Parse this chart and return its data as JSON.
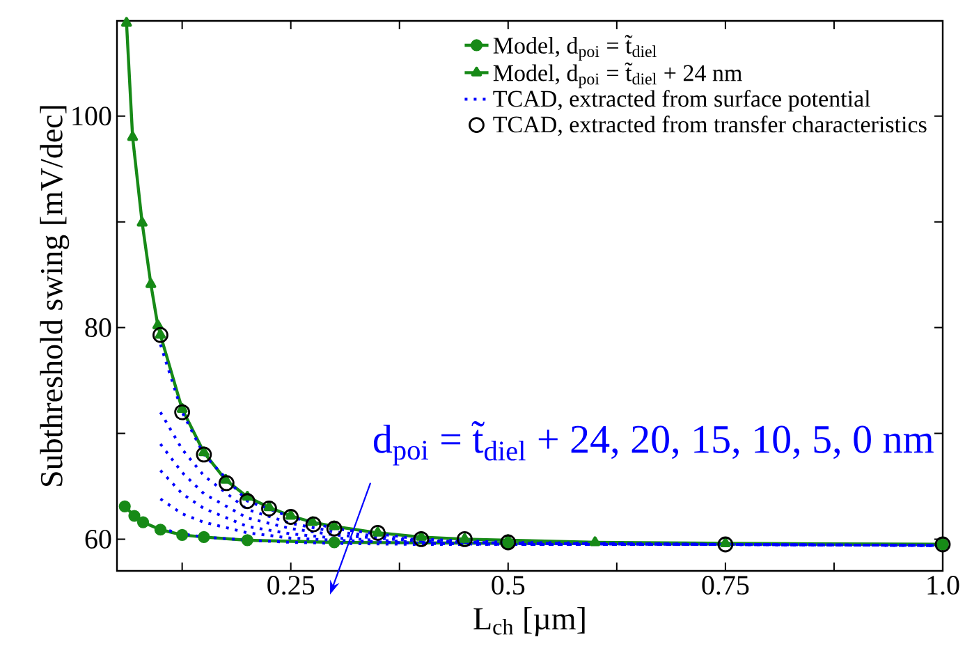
{
  "chart_data": {
    "type": "line",
    "xlabel": "L$_{ch}$ [µm]",
    "ylabel": "Subthreshold swing [mV/dec]",
    "xlim": [
      0.05,
      1.0
    ],
    "ylim": [
      57,
      109
    ],
    "xticks": [
      {
        "value": 0.125,
        "label": null
      },
      0.25,
      {
        "value": 0.375,
        "label": null
      },
      0.5,
      {
        "value": 0.625,
        "label": null
      },
      0.75,
      {
        "value": 0.875,
        "label": null
      },
      {
        "value": 1.0,
        "label": "1.0"
      }
    ],
    "yticks": [
      60,
      {
        "value": 70,
        "label": null
      },
      80,
      {
        "value": 90,
        "label": null
      },
      100
    ],
    "legend": "top right",
    "annotations": [
      "d$_{poi}$ = t̃$_{diel}$ + 24, 20, 15, 10, 5, 0 nm"
    ],
    "series": [
      {
        "name": "Model, d$_{poi}$ = t̃$_{diel}$",
        "marker": "circle",
        "line_style": "solid",
        "color": "#178a17",
        "x": [
          0.059,
          0.07,
          0.08,
          0.1,
          0.125,
          0.15,
          0.2,
          0.3,
          0.5,
          1.0
        ],
        "values": [
          63.1,
          62.2,
          61.6,
          60.9,
          60.4,
          60.2,
          59.9,
          59.7,
          59.6,
          59.5
        ]
      },
      {
        "name": "Model, d$_{poi}$ = t̃$_{diel}$ + 24 nm",
        "marker": "triangle",
        "line_style": "solid",
        "color": "#178a17",
        "x": [
          0.061,
          0.068,
          0.079,
          0.089,
          0.097,
          0.1,
          0.125,
          0.15,
          0.175,
          0.2,
          0.225,
          0.25,
          0.275,
          0.3,
          0.35,
          0.4,
          0.45,
          0.5,
          0.6,
          0.75,
          1.0
        ],
        "values": [
          108.8,
          98.0,
          89.9,
          84.1,
          80.2,
          79.3,
          72.3,
          68.2,
          65.6,
          64.0,
          63.0,
          62.2,
          61.6,
          61.2,
          60.6,
          60.2,
          60.0,
          59.9,
          59.7,
          59.6,
          59.5
        ]
      },
      {
        "name": "TCAD, extracted from surface potential",
        "type": "line",
        "marker": "none",
        "line_style": "dotted",
        "color": "#0000ff",
        "x": [
          0.1,
          0.125,
          0.15,
          0.2,
          0.25,
          0.3,
          0.4,
          0.5,
          0.75,
          1.0
        ],
        "values": [
          78.4,
          72.0,
          68.0,
          63.6,
          62.1,
          61.0,
          60.0,
          59.7,
          59.5,
          59.4
        ]
      },
      {
        "type": "line",
        "marker": "none",
        "line_style": "dotted",
        "color": "#0000ff",
        "x": [
          0.1,
          0.125,
          0.15,
          0.2,
          0.25,
          0.3,
          0.4,
          0.5,
          0.75,
          1.0
        ],
        "values": [
          72.0,
          68.5,
          66.0,
          62.8,
          61.5,
          60.7,
          59.9,
          59.6,
          59.5,
          59.4
        ]
      },
      {
        "type": "line",
        "marker": "none",
        "line_style": "dotted",
        "color": "#0000ff",
        "x": [
          0.1,
          0.125,
          0.15,
          0.2,
          0.25,
          0.3,
          0.4,
          0.5,
          0.75,
          1.0
        ],
        "values": [
          69.0,
          66.3,
          64.3,
          62.0,
          61.0,
          60.4,
          59.8,
          59.6,
          59.5,
          59.4
        ]
      },
      {
        "type": "line",
        "marker": "none",
        "line_style": "dotted",
        "color": "#0000ff",
        "x": [
          0.1,
          0.125,
          0.15,
          0.2,
          0.25,
          0.3,
          0.4,
          0.5,
          0.75,
          1.0
        ],
        "values": [
          66.5,
          64.3,
          62.9,
          61.2,
          60.5,
          60.1,
          59.7,
          59.6,
          59.5,
          59.4
        ]
      },
      {
        "type": "line",
        "marker": "none",
        "line_style": "dotted",
        "color": "#0000ff",
        "x": [
          0.1,
          0.125,
          0.15,
          0.2,
          0.25,
          0.3,
          0.4,
          0.5,
          0.75,
          1.0
        ],
        "values": [
          63.8,
          62.4,
          61.6,
          60.6,
          60.1,
          59.9,
          59.6,
          59.5,
          59.5,
          59.4
        ]
      },
      {
        "type": "line",
        "marker": "none",
        "line_style": "dotted",
        "color": "#0000ff",
        "x": [
          0.1,
          0.125,
          0.15,
          0.2,
          0.25,
          0.3,
          0.4,
          0.5,
          0.75,
          1.0
        ],
        "values": [
          61.0,
          60.5,
          60.2,
          59.9,
          59.7,
          59.6,
          59.5,
          59.5,
          59.5,
          59.4
        ]
      },
      {
        "name": "TCAD, extracted from transfer characteristics",
        "type": "scatter",
        "marker": "circle",
        "color": "#000000",
        "x": [
          0.1,
          0.125,
          0.15,
          0.176,
          0.2,
          0.225,
          0.25,
          0.276,
          0.3,
          0.35,
          0.4,
          0.45,
          0.5,
          0.75,
          1.0
        ],
        "values": [
          79.3,
          72.0,
          68.0,
          65.3,
          63.6,
          62.9,
          62.1,
          61.4,
          61.0,
          60.6,
          60.0,
          60.0,
          59.7,
          59.5,
          59.5
        ]
      }
    ]
  }
}
